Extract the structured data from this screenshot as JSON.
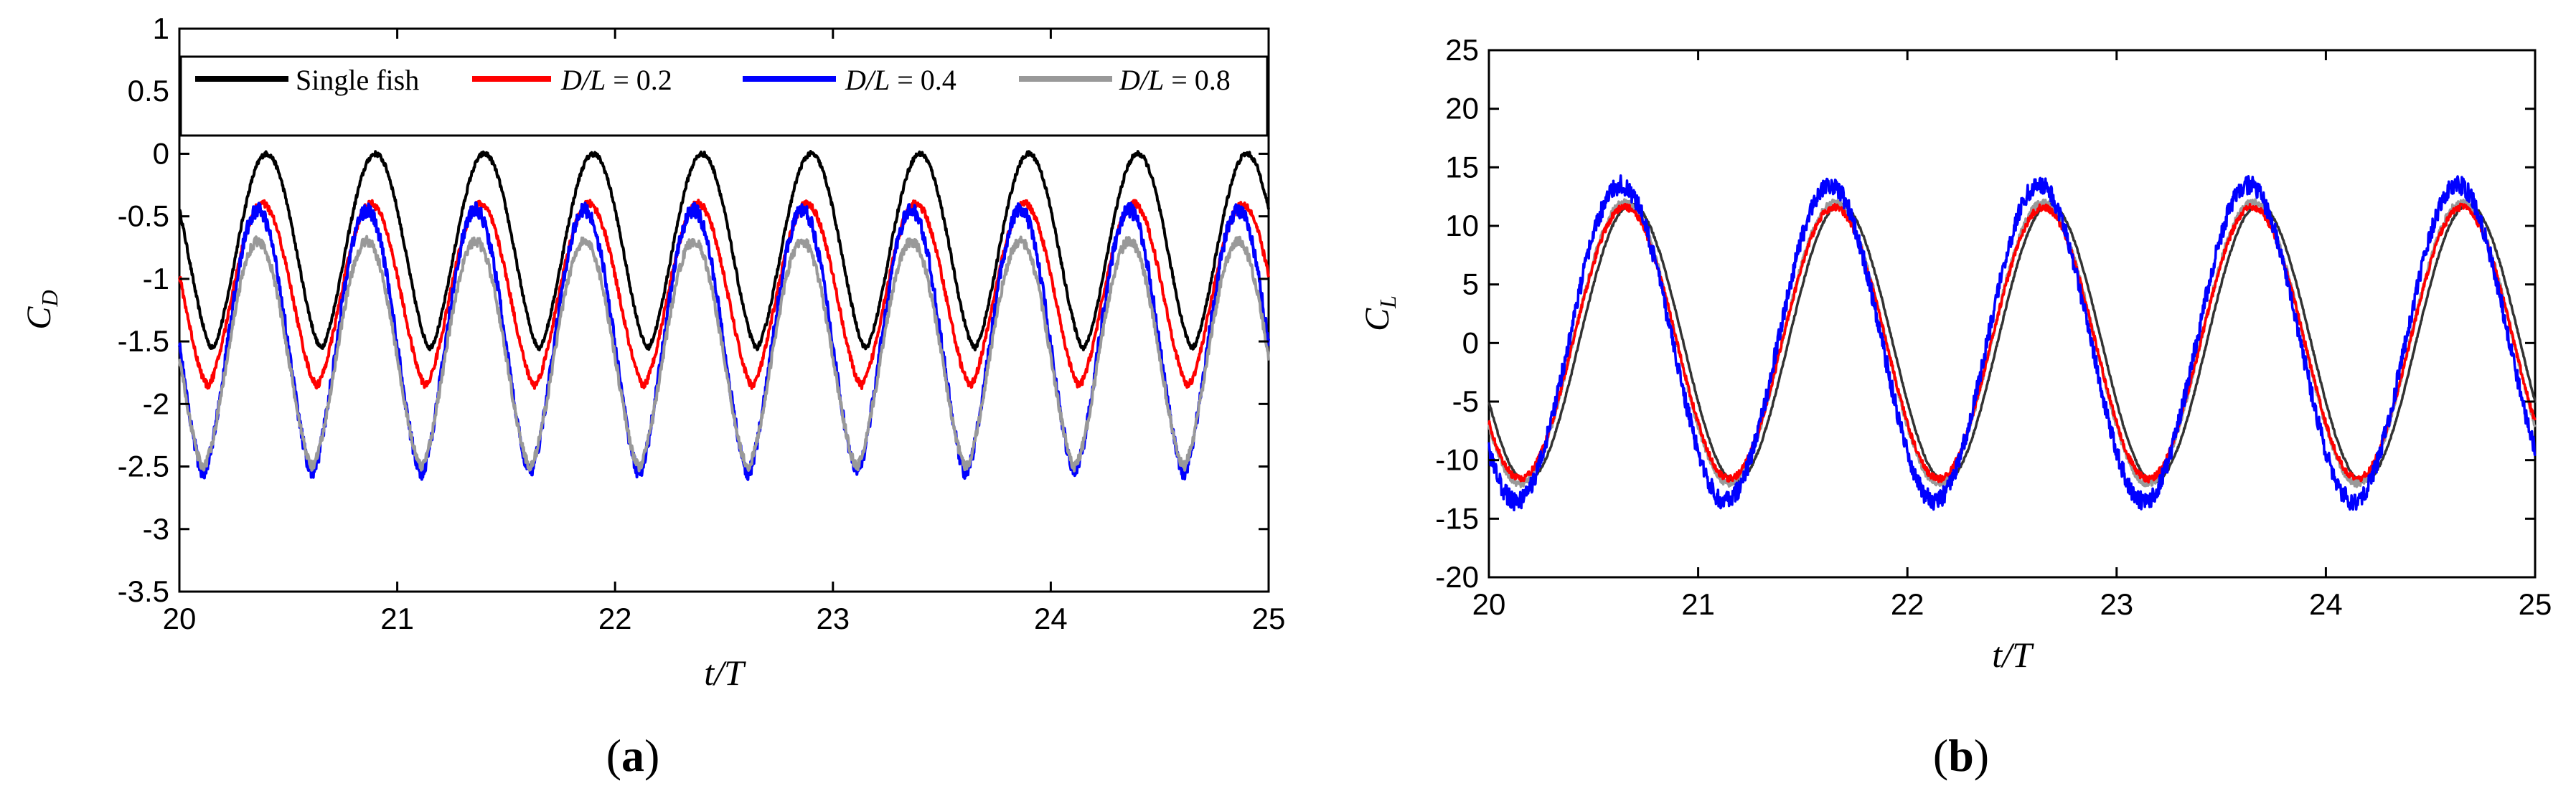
{
  "chart_data": [
    {
      "panel_label": "(a)",
      "type": "line",
      "ylabel_main": "C",
      "ylabel_sub": "D",
      "xlabel": "t/T",
      "xlim": [
        20,
        25
      ],
      "ylim": [
        -3.5,
        1
      ],
      "xticks": [
        "20",
        "21",
        "22",
        "23",
        "24",
        "25"
      ],
      "yticks": [
        "1",
        "0.5",
        "0",
        "-0.5",
        "-1",
        "-1.5",
        "-2",
        "-2.5",
        "-3",
        "-3.5"
      ],
      "legend_position": "top",
      "series": [
        {
          "name": "Single fish",
          "color": "#000000",
          "max": 0.0,
          "min": -1.55,
          "phase_of_max": 0.4,
          "noise": 0.02
        },
        {
          "name": "D/L = 0.2",
          "color": "#ff0000",
          "max": -0.4,
          "min": -1.85,
          "phase_of_max": 0.38,
          "noise": 0.03
        },
        {
          "name": "D/L = 0.4",
          "color": "#0000ff",
          "max": -0.45,
          "min": -2.55,
          "phase_of_max": 0.36,
          "noise": 0.06
        },
        {
          "name": "D/L = 0.8",
          "color": "#999999",
          "max": -0.7,
          "min": -2.5,
          "phase_of_max": 0.36,
          "noise": 0.04
        }
      ]
    },
    {
      "panel_label": "(b)",
      "type": "line",
      "ylabel_main": "C",
      "ylabel_sub": "L",
      "xlabel": "t/T",
      "xlim": [
        20,
        25
      ],
      "ylim": [
        -20,
        25
      ],
      "xticks": [
        "20",
        "21",
        "22",
        "23",
        "24",
        "25"
      ],
      "yticks": [
        "25",
        "20",
        "15",
        "10",
        "5",
        "0",
        "-5",
        "-10",
        "-15",
        "-20"
      ],
      "series": [
        {
          "name": "Single fish",
          "color": "#333333",
          "amplitude": 11.8,
          "phase_of_max": 0.68,
          "noise": 0.1
        },
        {
          "name": "D/L = 0.8",
          "color": "#999999",
          "amplitude": 12.0,
          "phase_of_max": 0.65,
          "noise": 0.3
        },
        {
          "name": "D/L = 0.2",
          "color": "#ff0000",
          "amplitude": 11.6,
          "phase_of_max": 0.65,
          "noise": 0.3
        },
        {
          "name": "D/L = 0.4",
          "color": "#0000ff",
          "amplitude": 13.5,
          "phase_of_max": 0.63,
          "noise": 0.8
        }
      ]
    }
  ],
  "legend_items": [
    {
      "main": "Single  fish",
      "italic_part": "",
      "suffix": ""
    },
    {
      "main": "",
      "italic_part": "D/L",
      "suffix": " = 0.2"
    },
    {
      "main": "",
      "italic_part": "D/L",
      "suffix": " = 0.4"
    },
    {
      "main": "",
      "italic_part": "D/L",
      "suffix": " = 0.8"
    }
  ]
}
